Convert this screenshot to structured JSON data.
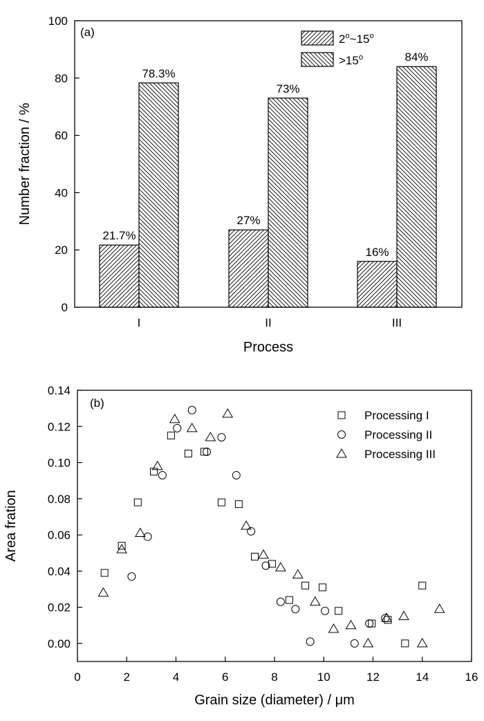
{
  "chart_data": [
    {
      "type": "bar",
      "panel_label": "(a)",
      "xlabel": "Process",
      "ylabel": "Number fraction / %",
      "ylim": [
        0,
        100
      ],
      "yticks": [
        "0",
        "20",
        "40",
        "60",
        "80",
        "100"
      ],
      "categories": [
        "I",
        "II",
        "III"
      ],
      "legend_position": "top-right",
      "series": [
        {
          "name": "2°~15°",
          "name_parts": {
            "a": "2",
            "b": "o",
            "c": "~15",
            "d": "o"
          },
          "pattern": "hatch-forward",
          "values": [
            21.7,
            27,
            16
          ],
          "labels": [
            "21.7%",
            "27%",
            "16%"
          ]
        },
        {
          "name": ">15°",
          "name_parts": {
            "a": ">15",
            "b": "o"
          },
          "pattern": "hatch-backward",
          "values": [
            78.3,
            73,
            84
          ],
          "labels": [
            "78.3%",
            "73%",
            "84%"
          ]
        }
      ]
    },
    {
      "type": "scatter",
      "panel_label": "(b)",
      "xlabel": "Grain size (diameter) / μm",
      "ylabel": "Area fration",
      "xlim": [
        0,
        16
      ],
      "ylim": [
        -0.01,
        0.14
      ],
      "xticks": [
        "0",
        "2",
        "4",
        "6",
        "8",
        "10",
        "12",
        "14",
        "16"
      ],
      "yticks": [
        "0.00",
        "0.02",
        "0.04",
        "0.06",
        "0.08",
        "0.10",
        "0.12",
        "0.14"
      ],
      "legend_position": "top-right",
      "series": [
        {
          "name": "Processing I",
          "marker": "square",
          "points": [
            [
              1.1,
              0.039
            ],
            [
              1.8,
              0.054
            ],
            [
              2.45,
              0.078
            ],
            [
              3.1,
              0.095
            ],
            [
              3.8,
              0.115
            ],
            [
              4.5,
              0.105
            ],
            [
              5.15,
              0.106
            ],
            [
              5.85,
              0.078
            ],
            [
              6.55,
              0.077
            ],
            [
              7.2,
              0.048
            ],
            [
              7.9,
              0.044
            ],
            [
              8.6,
              0.024
            ],
            [
              9.25,
              0.032
            ],
            [
              9.95,
              0.031
            ],
            [
              10.6,
              0.018
            ],
            [
              11.95,
              0.011
            ],
            [
              12.6,
              0.013
            ],
            [
              13.3,
              0.0
            ],
            [
              14.0,
              0.032
            ]
          ]
        },
        {
          "name": "Processing II",
          "marker": "circle",
          "points": [
            [
              2.2,
              0.037
            ],
            [
              2.85,
              0.059
            ],
            [
              3.45,
              0.093
            ],
            [
              4.05,
              0.119
            ],
            [
              4.65,
              0.129
            ],
            [
              5.25,
              0.106
            ],
            [
              5.85,
              0.114
            ],
            [
              6.45,
              0.093
            ],
            [
              7.05,
              0.062
            ],
            [
              7.65,
              0.043
            ],
            [
              8.25,
              0.023
            ],
            [
              8.85,
              0.019
            ],
            [
              9.45,
              0.001
            ],
            [
              10.05,
              0.018
            ],
            [
              11.25,
              0.0
            ],
            [
              11.85,
              0.011
            ],
            [
              12.5,
              0.014
            ]
          ]
        },
        {
          "name": "Processing III",
          "marker": "triangle",
          "points": [
            [
              1.05,
              0.028
            ],
            [
              1.8,
              0.052
            ],
            [
              2.55,
              0.061
            ],
            [
              3.25,
              0.098
            ],
            [
              3.95,
              0.124
            ],
            [
              4.65,
              0.119
            ],
            [
              5.4,
              0.114
            ],
            [
              6.1,
              0.127
            ],
            [
              6.85,
              0.065
            ],
            [
              7.55,
              0.049
            ],
            [
              8.25,
              0.042
            ],
            [
              8.95,
              0.038
            ],
            [
              9.65,
              0.023
            ],
            [
              10.4,
              0.008
            ],
            [
              11.1,
              0.01
            ],
            [
              11.8,
              0.0
            ],
            [
              12.55,
              0.014
            ],
            [
              13.25,
              0.015
            ],
            [
              14.0,
              0.0
            ],
            [
              14.7,
              0.019
            ]
          ]
        }
      ]
    }
  ]
}
